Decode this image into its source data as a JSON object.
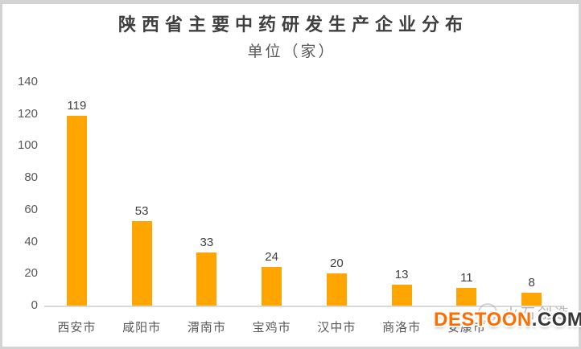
{
  "title": "陕西省主要中药研发生产企业分布",
  "subtitle": "单位（家）",
  "chart_data": {
    "type": "bar",
    "title": "陕西省主要中药研发生产企业分布",
    "subtitle": "单位（家）",
    "categories": [
      "西安市",
      "咸阳市",
      "渭南市",
      "宝鸡市",
      "汉中市",
      "商洛市",
      "安康市",
      ""
    ],
    "values": [
      119,
      53,
      33,
      24,
      20,
      13,
      11,
      8
    ],
    "xlabel": "",
    "ylabel": "",
    "ylim": [
      0,
      140
    ],
    "yticks": [
      0,
      20,
      40,
      60,
      80,
      100,
      120,
      140
    ],
    "grid": false,
    "legend": false,
    "data_labels": true,
    "bar_color": "#FFA500",
    "axis_line_color": "#D9D9D9",
    "label_color": "#595959",
    "value_label_color": "#404040",
    "title_color": "#3F3F3F"
  },
  "watermarks": {
    "destoon": {
      "brand": "DESTOON",
      "suffix": ".COM",
      "brand_color": "#FF6D00",
      "suffix_color": "#383838"
    },
    "stamp": {
      "text": "火石创造",
      "color": "#969696"
    }
  }
}
